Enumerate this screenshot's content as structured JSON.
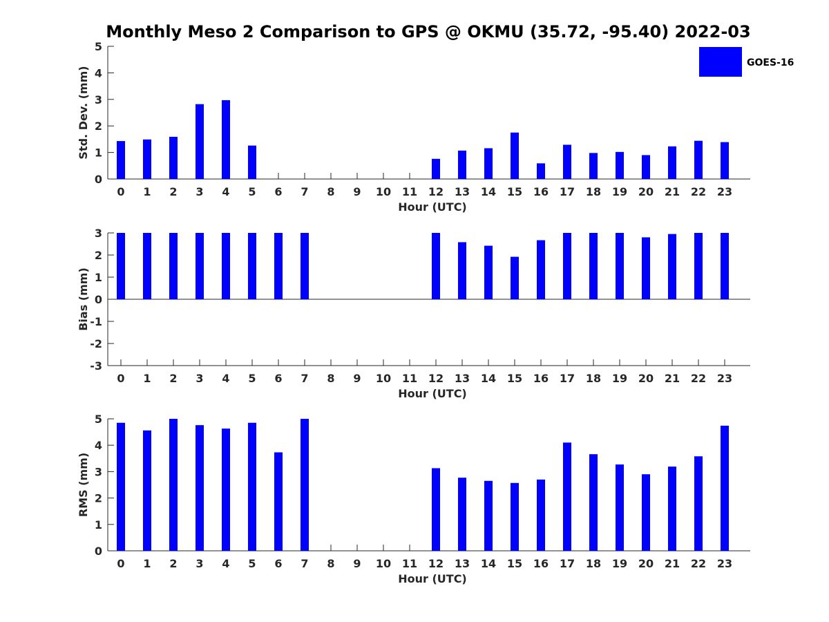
{
  "title": "Monthly Meso 2 Comparison to GPS @ OKMU (35.72, -95.40) 2022-03",
  "legend": {
    "label": "GOES-16",
    "color": "#0000ff",
    "placement": "top-right"
  },
  "chart_data": [
    {
      "type": "bar",
      "xlabel": "Hour (UTC)",
      "ylabel": "Std. Dev. (mm)",
      "ylim": [
        0,
        5
      ],
      "yticks": [
        "0",
        "1",
        "2",
        "3",
        "4",
        "5"
      ],
      "categories": [
        "0",
        "1",
        "2",
        "3",
        "4",
        "5",
        "6",
        "7",
        "8",
        "9",
        "10",
        "11",
        "12",
        "13",
        "14",
        "15",
        "16",
        "17",
        "18",
        "19",
        "20",
        "21",
        "22",
        "23"
      ],
      "series": [
        {
          "name": "GOES-16",
          "values": [
            1.43,
            1.49,
            1.59,
            2.82,
            2.97,
            1.26,
            null,
            null,
            null,
            null,
            null,
            null,
            0.76,
            1.07,
            1.16,
            1.75,
            0.59,
            1.29,
            0.98,
            1.02,
            0.9,
            1.23,
            1.44,
            1.39
          ]
        }
      ]
    },
    {
      "type": "bar",
      "xlabel": "Hour (UTC)",
      "ylabel": "Bias (mm)",
      "ylim": [
        -3,
        3
      ],
      "yticks": [
        "-3",
        "-2",
        "-1",
        "0",
        "1",
        "2",
        "3"
      ],
      "categories": [
        "0",
        "1",
        "2",
        "3",
        "4",
        "5",
        "6",
        "7",
        "8",
        "9",
        "10",
        "11",
        "12",
        "13",
        "14",
        "15",
        "16",
        "17",
        "18",
        "19",
        "20",
        "21",
        "22",
        "23"
      ],
      "series": [
        {
          "name": "GOES-16",
          "values": [
            3.0,
            3.0,
            3.0,
            3.0,
            3.0,
            3.0,
            3.0,
            3.0,
            null,
            null,
            null,
            null,
            3.0,
            2.58,
            2.42,
            1.92,
            2.67,
            3.0,
            3.0,
            3.0,
            2.8,
            2.95,
            3.0,
            3.0
          ]
        }
      ]
    },
    {
      "type": "bar",
      "xlabel": "Hour (UTC)",
      "ylabel": "RMS (mm)",
      "ylim": [
        0,
        5
      ],
      "yticks": [
        "0",
        "1",
        "2",
        "3",
        "4",
        "5"
      ],
      "categories": [
        "0",
        "1",
        "2",
        "3",
        "4",
        "5",
        "6",
        "7",
        "8",
        "9",
        "10",
        "11",
        "12",
        "13",
        "14",
        "15",
        "16",
        "17",
        "18",
        "19",
        "20",
        "21",
        "22",
        "23"
      ],
      "series": [
        {
          "name": "GOES-16",
          "values": [
            4.85,
            4.56,
            5.0,
            4.76,
            4.63,
            4.85,
            3.73,
            5.0,
            null,
            null,
            null,
            null,
            3.13,
            2.77,
            2.65,
            2.57,
            2.7,
            4.1,
            3.66,
            3.27,
            2.9,
            3.19,
            3.58,
            4.74
          ]
        }
      ]
    }
  ]
}
